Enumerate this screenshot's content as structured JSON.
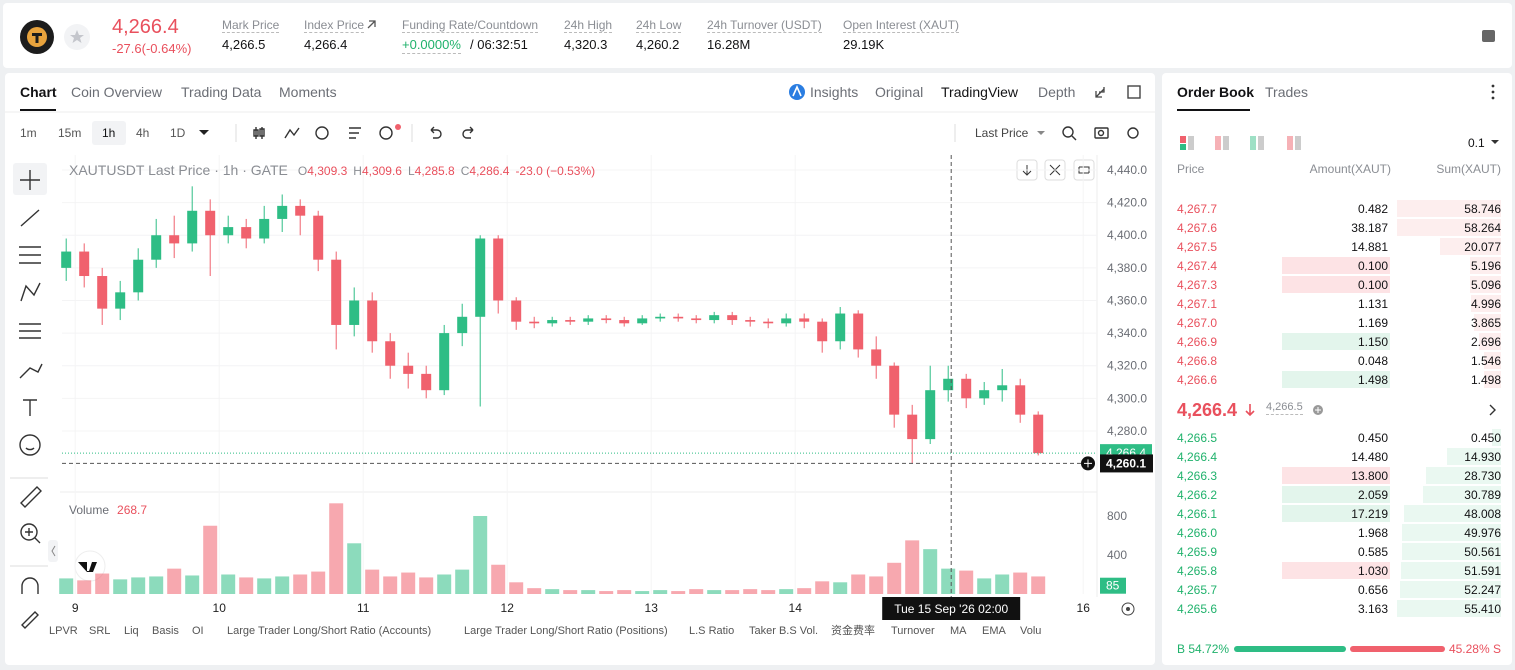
{
  "header": {
    "price": "4,266.4",
    "change": "-27.6(-0.64%)",
    "stats": [
      {
        "label": "Mark Price",
        "value": "4,266.5"
      },
      {
        "label": "Index Price",
        "value": "4,266.4"
      },
      {
        "label": "Funding Rate/Countdown",
        "value": "+0.0000%",
        "extra": "/ 06:32:51"
      },
      {
        "label": "24h High",
        "value": "4,320.3"
      },
      {
        "label": "24h Low",
        "value": "4,260.2"
      },
      {
        "label": "24h Turnover (USDT)",
        "value": "16.28M"
      },
      {
        "label": "Open Interest (XAUT)",
        "value": "29.19K"
      }
    ]
  },
  "chart_tabs": [
    "Chart",
    "Coin Overview",
    "Trading Data",
    "Moments"
  ],
  "view_tabs": [
    "Insights",
    "Original",
    "TradingView",
    "Depth"
  ],
  "intervals": [
    "1m",
    "15m",
    "1h",
    "4h",
    "1D"
  ],
  "price_type": "Last Price",
  "chart_data": {
    "type": "candlestick",
    "title": "XAUTUSDT Last Price · 1h · GATE",
    "ohlc_legend": [
      {
        "label": "O",
        "value": "4,309.3"
      },
      {
        "label": "H",
        "value": "4,309.6"
      },
      {
        "label": "L",
        "value": "4,285.8"
      },
      {
        "label": "C",
        "value": "4,286.4"
      }
    ],
    "change": "-23.0 (−0.53%)",
    "x": [
      -1.5,
      1.5,
      4.5,
      7.5,
      10.5,
      13.5,
      16.5,
      19.5,
      22.5,
      25.5,
      28.5,
      31.5,
      34.5,
      37.5,
      40.5,
      43.5,
      46.5,
      49.5,
      52.5,
      55.5,
      58.5,
      61.5,
      64.5,
      67.5,
      70.5,
      73.5,
      76.5,
      79.5,
      82.5,
      85.5,
      88.5,
      91.5,
      94.5,
      97.5,
      100.5,
      103.5,
      106.5,
      109.5,
      112.5,
      115.5,
      118.5,
      121.5,
      124.5,
      127.5,
      130.5,
      133.5,
      136.5,
      139.5,
      142.5,
      145.5,
      148.5,
      151.5,
      154.5,
      157.5,
      160.5
    ],
    "open": [
      4380,
      4390,
      4375,
      4355,
      4365,
      4385,
      4400,
      4395,
      4415,
      4400,
      4405,
      4398,
      4410,
      4418,
      4412,
      4385,
      4345,
      4360,
      4335,
      4320,
      4315,
      4305,
      4340,
      4350,
      4398,
      4360,
      4347,
      4346,
      4348,
      4347,
      4349,
      4348,
      4346,
      4349,
      4350,
      4349,
      4348,
      4351,
      4348,
      4347,
      4346,
      4349,
      4347,
      4335,
      4352,
      4330,
      4320,
      4290,
      4275,
      4305,
      4312,
      4300,
      4305,
      4308,
      4290
    ],
    "high": [
      4398,
      4395,
      4380,
      4372,
      4392,
      4410,
      4412,
      4430,
      4422,
      4412,
      4410,
      4418,
      4425,
      4422,
      4415,
      4390,
      4368,
      4365,
      4340,
      4328,
      4320,
      4345,
      4358,
      4400,
      4400,
      4362,
      4350,
      4350,
      4350,
      4351,
      4351,
      4350,
      4351,
      4352,
      4352,
      4351,
      4353,
      4353,
      4350,
      4349,
      4352,
      4352,
      4349,
      4356,
      4354,
      4338,
      4322,
      4296,
      4320,
      4320,
      4315,
      4310,
      4318,
      4312,
      4292
    ],
    "low": [
      4372,
      4368,
      4345,
      4348,
      4360,
      4380,
      4386,
      4390,
      4375,
      4395,
      4392,
      4395,
      4402,
      4400,
      4378,
      4330,
      4338,
      4328,
      4312,
      4306,
      4300,
      4302,
      4332,
      4295,
      4352,
      4342,
      4343,
      4344,
      4345,
      4345,
      4346,
      4344,
      4345,
      4347,
      4347,
      4346,
      4346,
      4345,
      4344,
      4343,
      4344,
      4343,
      4328,
      4330,
      4325,
      4312,
      4282,
      4260,
      4272,
      4298,
      4294,
      4296,
      4298,
      4285,
      4265
    ],
    "close": [
      4390,
      4375,
      4355,
      4365,
      4385,
      4400,
      4395,
      4415,
      4400,
      4405,
      4398,
      4410,
      4418,
      4412,
      4385,
      4345,
      4360,
      4335,
      4320,
      4315,
      4305,
      4340,
      4350,
      4398,
      4360,
      4347,
      4346,
      4348,
      4347,
      4349,
      4348,
      4346,
      4349,
      4350,
      4349,
      4348,
      4351,
      4348,
      4347,
      4346,
      4349,
      4347,
      4335,
      4352,
      4330,
      4320,
      4290,
      4275,
      4305,
      4312,
      4300,
      4305,
      4308,
      4290,
      4266.4
    ],
    "volume": [
      160,
      140,
      210,
      150,
      170,
      180,
      260,
      190,
      700,
      200,
      170,
      160,
      180,
      200,
      230,
      930,
      520,
      250,
      180,
      220,
      170,
      200,
      250,
      800,
      300,
      120,
      60,
      50,
      40,
      40,
      30,
      40,
      30,
      40,
      30,
      50,
      40,
      40,
      50,
      40,
      50,
      60,
      130,
      120,
      200,
      180,
      320,
      550,
      460,
      260,
      240,
      160,
      200,
      220,
      180
    ],
    "up_color": "#2ebd85",
    "down_color": "#f0616d",
    "xlim": [
      -2.2,
      170.3
    ],
    "xticks": [
      {
        "value": 0,
        "label": "9"
      },
      {
        "value": 24,
        "label": "10"
      },
      {
        "value": 48,
        "label": "11"
      },
      {
        "value": 72,
        "label": "12"
      },
      {
        "value": 96,
        "label": "13"
      },
      {
        "value": 120,
        "label": "14"
      },
      {
        "value": 168,
        "label": "16"
      }
    ],
    "ylim": [
      4243.8,
      4449.2
    ],
    "yticks": [
      {
        "value": 4440,
        "label": "4,440.0"
      },
      {
        "value": 4420,
        "label": "4,420.0"
      },
      {
        "value": 4400,
        "label": "4,400.0"
      },
      {
        "value": 4380,
        "label": "4,380.0"
      },
      {
        "value": 4360,
        "label": "4,360.0"
      },
      {
        "value": 4340,
        "label": "4,340.0"
      },
      {
        "value": 4320,
        "label": "4,320.0"
      },
      {
        "value": 4300,
        "label": "4,300.0"
      },
      {
        "value": 4280,
        "label": "4,280.0"
      }
    ],
    "last_price": {
      "value": 4266.4,
      "label": "4,266.4"
    },
    "crosshair_price": {
      "value": 4260.1,
      "label": "4,260.1"
    },
    "crosshair_time": {
      "value": 146,
      "label": "Tue 15 Sep '26  02:00"
    },
    "crosshair_volume": 85,
    "volume_title": "Volume",
    "volume_value": 268.7,
    "volume_ylim": [
      0,
      964
    ],
    "volume_yticks": [
      800,
      400
    ]
  },
  "indicators": [
    "LPVR",
    "SRL",
    "Liq",
    "Basis",
    "OI",
    "Large Trader Long/Short Ratio (Accounts)",
    "Large Trader Long/Short Ratio (Positions)",
    "L.S Ratio",
    "Taker B.S Vol.",
    "资金费率",
    "Turnover",
    "MA",
    "EMA",
    "Volu"
  ],
  "order_book": {
    "tabs": [
      "Order Book",
      "Trades"
    ],
    "precision": "0.1",
    "columns": [
      "Price",
      "Amount(XAUT)",
      "Sum(XAUT)"
    ],
    "asks": [
      [
        "4,267.7",
        "0.482",
        "58.746"
      ],
      [
        "4,267.6",
        "38.187",
        "58.264"
      ],
      [
        "4,267.5",
        "14.881",
        "20.077"
      ],
      [
        "4,267.4",
        "0.100",
        "5.196"
      ],
      [
        "4,267.3",
        "0.100",
        "5.096"
      ],
      [
        "4,267.1",
        "1.131",
        "4.996"
      ],
      [
        "4,267.0",
        "1.169",
        "3.865"
      ],
      [
        "4,266.9",
        "1.150",
        "2.696"
      ],
      [
        "4,266.8",
        "0.048",
        "1.546"
      ],
      [
        "4,266.6",
        "1.498",
        "1.498"
      ]
    ],
    "last_price": "4,266.4",
    "mark_price": "4,266.5",
    "bids": [
      [
        "4,266.5",
        "0.450",
        "0.450"
      ],
      [
        "4,266.4",
        "14.480",
        "14.930"
      ],
      [
        "4,266.3",
        "13.800",
        "28.730"
      ],
      [
        "4,266.2",
        "2.059",
        "30.789"
      ],
      [
        "4,266.1",
        "17.219",
        "48.008"
      ],
      [
        "4,266.0",
        "1.968",
        "49.976"
      ],
      [
        "4,265.9",
        "0.585",
        "50.561"
      ],
      [
        "4,265.8",
        "1.030",
        "51.591"
      ],
      [
        "4,265.7",
        "0.656",
        "52.247"
      ],
      [
        "4,265.6",
        "3.163",
        "55.410"
      ]
    ],
    "buy": "B 54.72%",
    "sell": "45.28% S"
  }
}
